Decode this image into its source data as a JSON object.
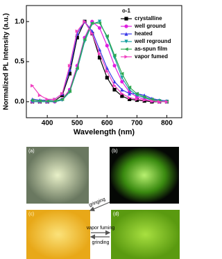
{
  "chart_data": {
    "type": "line",
    "y_label": "Normalized PL Intensity (a.u.)",
    "x_label": "Wavelength (nm)",
    "legend_title": "o-1",
    "legend": "upper right",
    "x": [
      350,
      375,
      400,
      425,
      450,
      475,
      500,
      525,
      550,
      575,
      600,
      625,
      650,
      675,
      700,
      725,
      750,
      775,
      800
    ],
    "series": [
      {
        "name": "crystalline",
        "color": "#000000",
        "marker": "square",
        "values": [
          0,
          0,
          0,
          0.01,
          0.08,
          0.35,
          0.8,
          1.0,
          0.85,
          0.55,
          0.3,
          0.15,
          0.07,
          0.03,
          0.02,
          0.01,
          0,
          0,
          0
        ]
      },
      {
        "name": "well ground",
        "color": "#e01fe0",
        "marker": "circle",
        "values": [
          0,
          0,
          0,
          0,
          0.03,
          0.15,
          0.45,
          0.8,
          1.0,
          0.92,
          0.7,
          0.45,
          0.25,
          0.12,
          0.06,
          0.03,
          0.01,
          0,
          0
        ]
      },
      {
        "name": "heated",
        "color": "#3a3ae8",
        "marker": "triangle-up",
        "values": [
          0.03,
          0.02,
          0.02,
          0.03,
          0.1,
          0.4,
          0.85,
          1.0,
          0.88,
          0.65,
          0.42,
          0.25,
          0.15,
          0.1,
          0.1,
          0.08,
          0.04,
          0.02,
          0.01
        ]
      },
      {
        "name": "well reground",
        "color": "#16a0a0",
        "marker": "triangle-down",
        "values": [
          0,
          0,
          0,
          0,
          0.02,
          0.12,
          0.4,
          0.75,
          0.97,
          1.0,
          0.8,
          0.55,
          0.3,
          0.15,
          0.08,
          0.05,
          0.02,
          0.01,
          0
        ]
      },
      {
        "name": "as-spun film",
        "color": "#2fa84f",
        "marker": "triangle-left",
        "values": [
          0.02,
          0.01,
          0.01,
          0.01,
          0.03,
          0.13,
          0.42,
          0.78,
          0.98,
          0.98,
          0.82,
          0.58,
          0.35,
          0.18,
          0.1,
          0.06,
          0.03,
          0.01,
          0
        ]
      },
      {
        "name": "vapor fumed",
        "color": "#f040c0",
        "marker": "triangle-right",
        "values": [
          0.2,
          0.08,
          0.03,
          0.03,
          0.1,
          0.45,
          0.88,
          1.0,
          0.85,
          0.6,
          0.38,
          0.2,
          0.1,
          0.05,
          0.03,
          0.02,
          0.01,
          0,
          0
        ]
      }
    ],
    "xlim": [
      330,
      850
    ],
    "xticks": [
      400,
      500,
      600,
      700,
      800
    ],
    "ylim": [
      -0.2,
      1.2
    ],
    "yticks": [
      {
        "value": 0,
        "label": "0.0"
      },
      {
        "value": 0.5,
        "label": "0.5"
      },
      {
        "value": 1,
        "label": "1.0"
      }
    ]
  },
  "photos": [
    {
      "label": "(a)"
    },
    {
      "label": "(b)"
    },
    {
      "label": "(c)"
    },
    {
      "label": "(d)"
    }
  ],
  "arrows": {
    "diagonal": "gringing",
    "right": "vapor fuming",
    "left": "grinding"
  }
}
